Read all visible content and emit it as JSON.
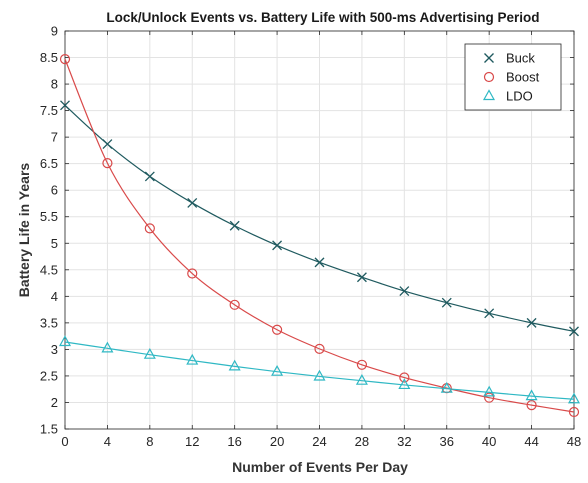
{
  "chart_data": {
    "type": "line",
    "title": "Lock/Unlock Events vs. Battery Life with 500-ms Advertising Period",
    "xlabel": "Number of Events Per Day",
    "ylabel": "Battery Life in Years",
    "xlim": [
      0,
      48
    ],
    "ylim": [
      1.5,
      9
    ],
    "xticks": [
      "0",
      "4",
      "8",
      "12",
      "16",
      "20",
      "24",
      "28",
      "32",
      "36",
      "40",
      "44",
      "48"
    ],
    "yticks": [
      "1.5",
      "2",
      "2.5",
      "3",
      "3.5",
      "4",
      "4.5",
      "5",
      "5.5",
      "6",
      "6.5",
      "7",
      "7.5",
      "8",
      "8.5",
      "9"
    ],
    "grid": true,
    "legend_position": "top-right",
    "x": [
      0,
      4,
      8,
      12,
      16,
      20,
      24,
      28,
      32,
      36,
      40,
      44,
      48
    ],
    "series": [
      {
        "name": "Buck",
        "marker": "x",
        "color": "#1f5a5f",
        "values": [
          7.6,
          6.87,
          6.26,
          5.76,
          5.33,
          4.96,
          4.64,
          4.36,
          4.1,
          3.88,
          3.68,
          3.5,
          3.34
        ]
      },
      {
        "name": "Boost",
        "marker": "o",
        "color": "#d94a4a",
        "values": [
          8.47,
          6.51,
          5.28,
          4.43,
          3.84,
          3.37,
          3.01,
          2.71,
          2.47,
          2.27,
          2.09,
          1.95,
          1.82
        ]
      },
      {
        "name": "LDO",
        "marker": "triangle",
        "color": "#2fb8c4",
        "values": [
          3.14,
          3.02,
          2.9,
          2.79,
          2.68,
          2.58,
          2.49,
          2.41,
          2.33,
          2.26,
          2.19,
          2.12,
          2.06
        ]
      }
    ]
  }
}
